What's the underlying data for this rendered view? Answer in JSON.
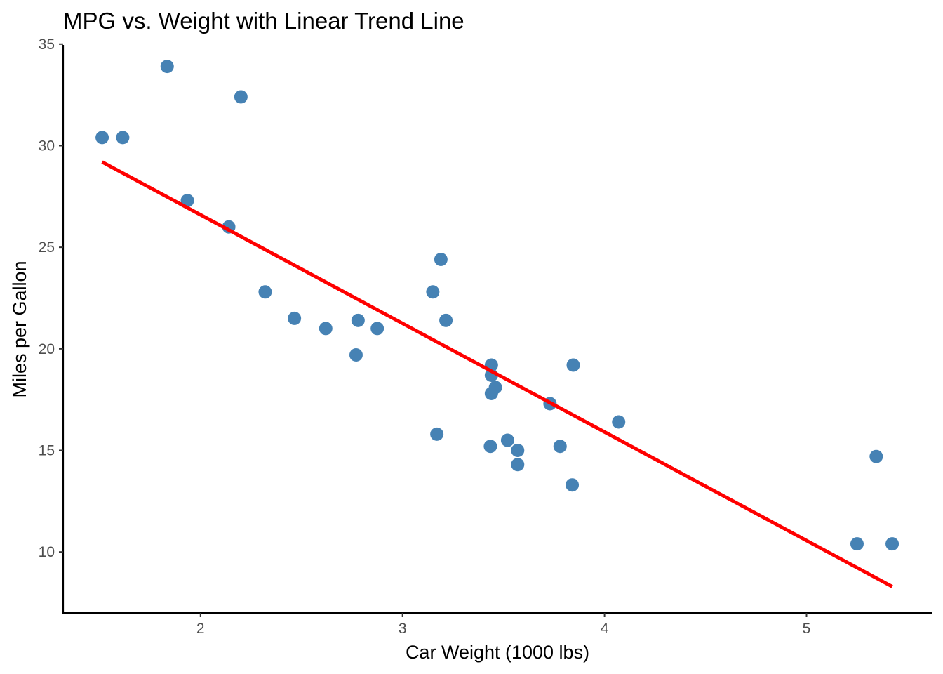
{
  "chart_data": {
    "type": "scatter",
    "title": "MPG vs. Weight with Linear Trend Line",
    "xlabel": "Car Weight (1000 lbs)",
    "ylabel": "Miles per Gallon",
    "xlim": [
      1.32,
      5.62
    ],
    "ylim": [
      7.0,
      35.2
    ],
    "xticks": [
      2,
      3,
      4,
      5
    ],
    "yticks": [
      10,
      15,
      20,
      25,
      30,
      35
    ],
    "grid": false,
    "legend": "none",
    "colors": {
      "points": "#4682B4",
      "trend_line": "#FF0000",
      "axis": "#000000",
      "tick_text": "#4D4D4D"
    },
    "points": [
      {
        "x": 2.62,
        "y": 21.0
      },
      {
        "x": 2.875,
        "y": 21.0
      },
      {
        "x": 2.32,
        "y": 22.8
      },
      {
        "x": 3.215,
        "y": 21.4
      },
      {
        "x": 3.44,
        "y": 18.7
      },
      {
        "x": 3.46,
        "y": 18.1
      },
      {
        "x": 3.57,
        "y": 14.3
      },
      {
        "x": 3.19,
        "y": 24.4
      },
      {
        "x": 3.15,
        "y": 22.8
      },
      {
        "x": 3.44,
        "y": 19.2
      },
      {
        "x": 3.44,
        "y": 17.8
      },
      {
        "x": 4.07,
        "y": 16.4
      },
      {
        "x": 3.73,
        "y": 17.3
      },
      {
        "x": 3.78,
        "y": 15.2
      },
      {
        "x": 5.25,
        "y": 10.4
      },
      {
        "x": 5.424,
        "y": 10.4
      },
      {
        "x": 5.345,
        "y": 14.7
      },
      {
        "x": 2.2,
        "y": 32.4
      },
      {
        "x": 1.615,
        "y": 30.4
      },
      {
        "x": 1.835,
        "y": 33.9
      },
      {
        "x": 2.465,
        "y": 21.5
      },
      {
        "x": 3.52,
        "y": 15.5
      },
      {
        "x": 3.435,
        "y": 15.2
      },
      {
        "x": 3.84,
        "y": 13.3
      },
      {
        "x": 3.845,
        "y": 19.2
      },
      {
        "x": 1.935,
        "y": 27.3
      },
      {
        "x": 2.14,
        "y": 26.0
      },
      {
        "x": 1.513,
        "y": 30.4
      },
      {
        "x": 3.17,
        "y": 15.8
      },
      {
        "x": 2.77,
        "y": 19.7
      },
      {
        "x": 3.57,
        "y": 15.0
      },
      {
        "x": 2.78,
        "y": 21.4
      }
    ],
    "trend_line": {
      "method": "linear",
      "x": [
        1.513,
        5.424
      ],
      "y": [
        29.199,
        8.297
      ]
    }
  }
}
